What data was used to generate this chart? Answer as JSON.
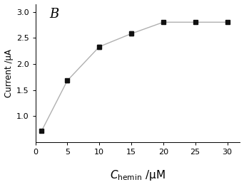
{
  "x": [
    1,
    5,
    10,
    15,
    20,
    25,
    30
  ],
  "y": [
    0.72,
    1.68,
    2.33,
    2.58,
    2.8,
    2.8,
    2.8
  ],
  "yerr": [
    0.03,
    0.03,
    0.04,
    0.04,
    0.03,
    0.03,
    0.03
  ],
  "xlim": [
    0,
    32
  ],
  "ylim": [
    0.5,
    3.15
  ],
  "xticks": [
    0,
    5,
    10,
    15,
    20,
    25,
    30
  ],
  "yticks": [
    1.0,
    1.5,
    2.0,
    2.5,
    3.0
  ],
  "xlabel_unit": " /μM",
  "ylabel": "Current /μA",
  "label_B": "B",
  "marker": "s",
  "marker_size": 4,
  "line_color": "#b0b0b0",
  "marker_color": "#111111",
  "background_color": "#ffffff",
  "figsize": [
    3.42,
    2.63
  ],
  "dpi": 100
}
